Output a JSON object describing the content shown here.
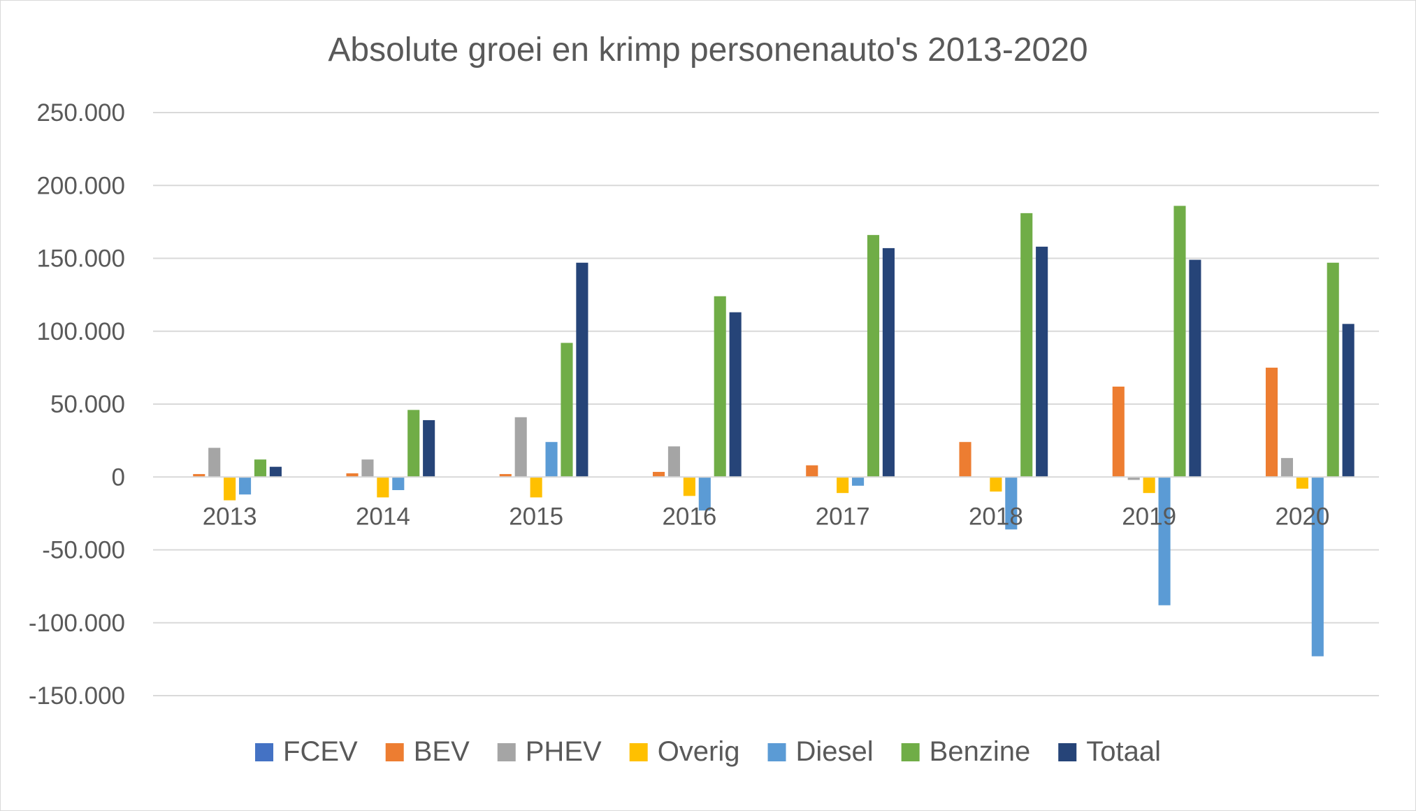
{
  "chart_data": {
    "type": "bar",
    "title": "Absolute groei  en krimp personenauto's  2013-2020",
    "xlabel": "",
    "ylabel": "",
    "categories": [
      "2013",
      "2014",
      "2015",
      "2016",
      "2017",
      "2018",
      "2019",
      "2020"
    ],
    "ylim": [
      -150000,
      250000
    ],
    "yticks": [
      250000,
      200000,
      150000,
      100000,
      50000,
      0,
      -50000,
      -100000,
      -150000
    ],
    "ytick_labels": [
      "250.000",
      "200.000",
      "150.000",
      "100.000",
      "50.000",
      "0",
      "-50.000",
      "-100.000",
      "-150.000"
    ],
    "grid": true,
    "legend_position": "bottom",
    "series": [
      {
        "name": "FCEV",
        "color": "#4472c4",
        "values": [
          0,
          0,
          0,
          0,
          0,
          0,
          0,
          0
        ]
      },
      {
        "name": "BEV",
        "color": "#ed7d31",
        "values": [
          2000,
          2500,
          2000,
          3500,
          8000,
          24000,
          62000,
          75000
        ]
      },
      {
        "name": "PHEV",
        "color": "#a5a5a5",
        "values": [
          20000,
          12000,
          41000,
          21000,
          0,
          0,
          -2000,
          13000
        ]
      },
      {
        "name": "Overig",
        "color": "#ffc000",
        "values": [
          -16000,
          -14000,
          -14000,
          -13000,
          -11000,
          -10000,
          -11000,
          -8000
        ]
      },
      {
        "name": "Diesel",
        "color": "#5b9bd5",
        "values": [
          -12000,
          -9000,
          24000,
          -23000,
          -6000,
          -36000,
          -88000,
          -123000
        ]
      },
      {
        "name": "Benzine",
        "color": "#70ad47",
        "values": [
          12000,
          46000,
          92000,
          124000,
          166000,
          181000,
          186000,
          147000
        ]
      },
      {
        "name": "Totaal",
        "color": "#264478",
        "values": [
          7000,
          39000,
          147000,
          113000,
          157000,
          158000,
          149000,
          105000
        ]
      }
    ]
  }
}
